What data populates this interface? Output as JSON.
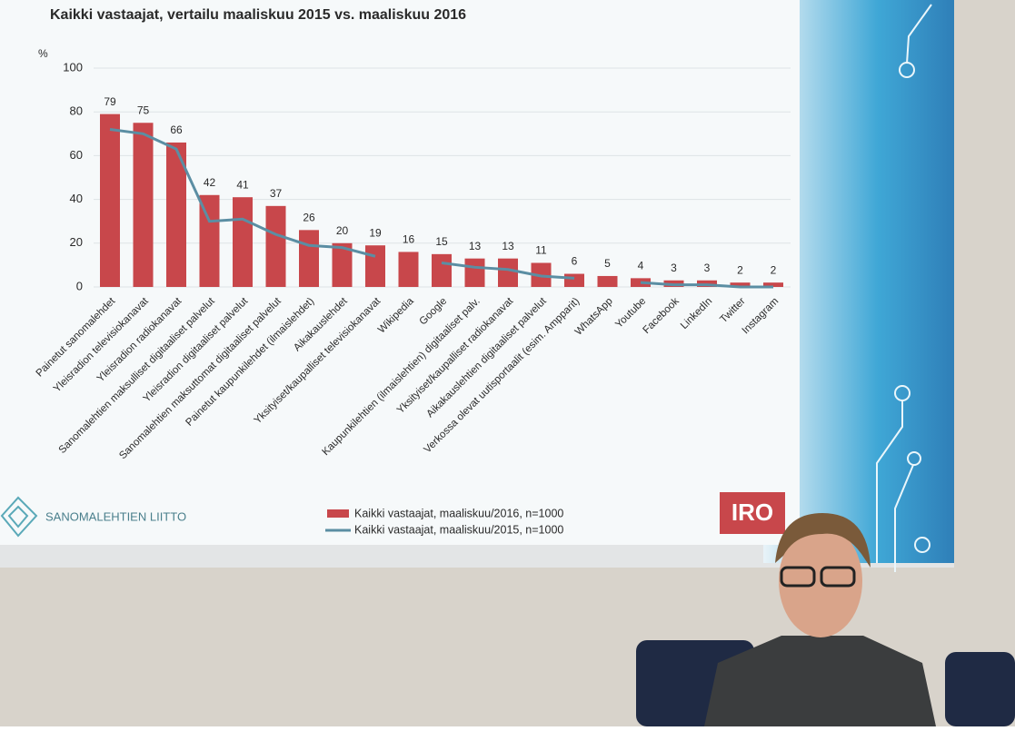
{
  "chart_data": {
    "type": "bar",
    "title": "Kaikki vastaajat,  vertailu maaliskuu 2015 vs. maaliskuu 2016",
    "y_label": "%",
    "categories": [
      "Painetut sanomalehdet",
      "Yleisradion televisiokanavat",
      "Yleisradion radiokanavat",
      "Sanomalehtien maksulliset digitaaliset palvelut",
      "Yleisradion digitaaliset palvelut",
      "Sanomalehtien maksuttomat digitaaliset palvelut",
      "Painetut kaupunkilehdet (ilmaislehdet)",
      "Aikakauslehdet",
      "Yksityiset/kaupalliset televisiokanavat",
      "Wikipedia",
      "Google",
      "Kaupunkilehtien (ilmaislehtien) digitaaliset palv.",
      "Yksityiset/kaupalliset radiokanavat",
      "Aikakauslehtien digitaaliset palvelut",
      "Verkossa olevat uutisportaalit (esim. Ampparit)",
      "WhatsApp",
      "Youtube",
      "Facebook",
      "LinkedIn",
      "Twitter",
      "Instagram"
    ],
    "series": [
      {
        "name": "Kaikki vastaajat, maaliskuu/2016, n=1000",
        "type": "bar",
        "color": "#c8474b",
        "values": [
          79,
          75,
          66,
          42,
          41,
          37,
          26,
          20,
          19,
          16,
          15,
          13,
          13,
          11,
          6,
          5,
          4,
          3,
          3,
          2,
          2
        ]
      },
      {
        "name": "Kaikki vastaajat, maaliskuu/2015, n=1000",
        "type": "line",
        "color": "#5b8ea3",
        "values": [
          72,
          70,
          63,
          30,
          31,
          24,
          19,
          18,
          14,
          null,
          11,
          9,
          8,
          5,
          4,
          null,
          2,
          1,
          1,
          0,
          0
        ]
      }
    ],
    "ylim": [
      0,
      100
    ],
    "yticks": [
      0,
      20,
      40,
      60,
      80,
      100
    ],
    "grid": true,
    "logos": [
      "SANOMALEHTIEN LIITTO",
      "IRO"
    ]
  }
}
